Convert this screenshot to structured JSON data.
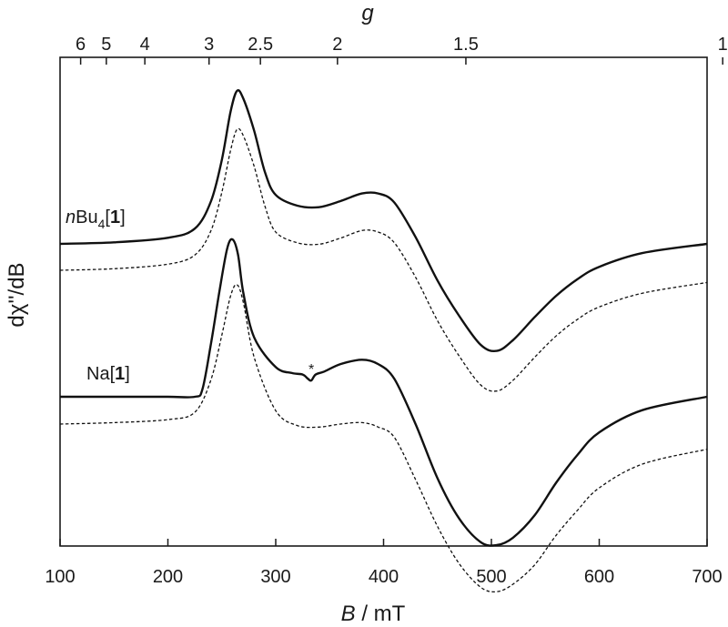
{
  "chart_data": {
    "type": "line",
    "xlabel": {
      "italic": "B",
      "rest": " / mT"
    },
    "ylabel": "dχ''/dB",
    "top_axis_label": "g",
    "xlim": [
      100,
      700
    ],
    "x_ticks": [
      100,
      200,
      300,
      400,
      500,
      600,
      700
    ],
    "g_ticks": [
      6,
      5,
      4,
      3,
      2.5,
      2,
      1.5,
      1
    ],
    "g_tick_labels": [
      "6",
      "5",
      "4",
      "3",
      "2.5",
      "2",
      "1.5",
      "1"
    ],
    "g_factor_mT": 714.5,
    "series_labels": [
      {
        "name": "nBu4[1]"
      },
      {
        "name": "Na[1]"
      }
    ],
    "series": [
      {
        "name": "nBu4[1]",
        "style": "experimental",
        "x": [
          100,
          150,
          200,
          225,
          240,
          250,
          258,
          264,
          270,
          280,
          290,
          300,
          320,
          340,
          360,
          380,
          395,
          410,
          430,
          450,
          470,
          490,
          505,
          520,
          540,
          560,
          580,
          600,
          640,
          700
        ],
        "y": [
          0.0,
          0.01,
          0.04,
          0.1,
          0.28,
          0.55,
          0.86,
          1.0,
          0.95,
          0.74,
          0.47,
          0.32,
          0.25,
          0.24,
          0.28,
          0.33,
          0.33,
          0.27,
          0.04,
          -0.24,
          -0.47,
          -0.66,
          -0.7,
          -0.63,
          -0.48,
          -0.34,
          -0.23,
          -0.15,
          -0.06,
          0.0
        ]
      },
      {
        "name": "nBu4[1]",
        "style": "simulation",
        "x": [
          100,
          150,
          200,
          225,
          240,
          250,
          258,
          264,
          270,
          280,
          290,
          300,
          320,
          340,
          360,
          380,
          395,
          410,
          430,
          450,
          470,
          490,
          505,
          520,
          540,
          560,
          580,
          600,
          640,
          700
        ],
        "y": [
          0.0,
          0.01,
          0.04,
          0.1,
          0.26,
          0.51,
          0.78,
          0.92,
          0.88,
          0.68,
          0.42,
          0.25,
          0.18,
          0.17,
          0.21,
          0.26,
          0.25,
          0.18,
          -0.05,
          -0.33,
          -0.56,
          -0.75,
          -0.79,
          -0.72,
          -0.57,
          -0.43,
          -0.32,
          -0.24,
          -0.15,
          -0.08
        ]
      },
      {
        "name": "Na[1]",
        "style": "experimental",
        "x": [
          100,
          150,
          200,
          225,
          232,
          240,
          248,
          255,
          260,
          265,
          270,
          280,
          300,
          315,
          325,
          330,
          333,
          337,
          345,
          360,
          380,
          395,
          410,
          430,
          450,
          470,
          490,
          505,
          520,
          540,
          560,
          580,
          600,
          640,
          700
        ],
        "y": [
          0.0,
          0.0,
          0.0,
          0.0,
          0.05,
          0.36,
          0.72,
          1.0,
          1.06,
          0.96,
          0.7,
          0.4,
          0.2,
          0.16,
          0.15,
          0.12,
          0.11,
          0.15,
          0.17,
          0.22,
          0.25,
          0.22,
          0.12,
          -0.19,
          -0.55,
          -0.82,
          -0.98,
          -1.0,
          -0.95,
          -0.8,
          -0.58,
          -0.39,
          -0.24,
          -0.09,
          0.0
        ]
      },
      {
        "name": "Na[1]",
        "style": "simulation",
        "x": [
          100,
          150,
          200,
          225,
          240,
          250,
          258,
          264,
          270,
          280,
          300,
          320,
          340,
          360,
          380,
          395,
          410,
          430,
          450,
          470,
          490,
          505,
          520,
          540,
          560,
          580,
          600,
          640,
          700
        ],
        "y": [
          0.0,
          0.01,
          0.03,
          0.08,
          0.3,
          0.6,
          0.86,
          0.94,
          0.82,
          0.45,
          0.09,
          -0.01,
          -0.02,
          0.0,
          0.01,
          -0.02,
          -0.09,
          -0.38,
          -0.69,
          -0.94,
          -1.1,
          -1.13,
          -1.08,
          -0.95,
          -0.75,
          -0.58,
          -0.43,
          -0.27,
          -0.17
        ]
      }
    ],
    "annotations": [
      {
        "text": "*",
        "x": 333
      }
    ],
    "grid": false,
    "legend": "none"
  }
}
